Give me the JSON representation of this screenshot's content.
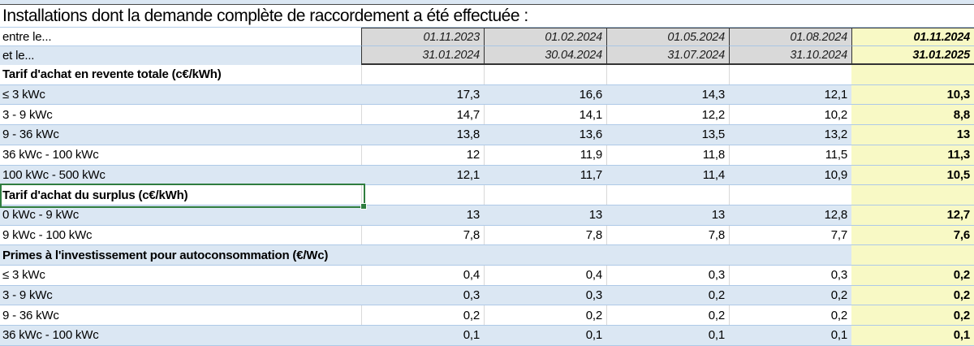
{
  "title": "Installations dont la demande complète de raccordement a été effectuée :",
  "header": {
    "between_label": "entre le...",
    "and_label": "et le...",
    "period_start_dates": [
      "01.11.2023",
      "01.02.2024",
      "01.05.2024",
      "01.08.2024",
      "01.11.2024"
    ],
    "period_end_dates": [
      "31.01.2024",
      "30.04.2024",
      "31.07.2024",
      "31.10.2024",
      "31.01.2025"
    ]
  },
  "rows": [
    {
      "type": "section",
      "label": "Tarif d'achat en revente totale (c€/kWh)"
    },
    {
      "type": "data",
      "label": "≤ 3 kWc",
      "values": [
        "17,3",
        "16,6",
        "14,3",
        "12,1",
        "10,3"
      ]
    },
    {
      "type": "data",
      "label": "3  - 9 kWc",
      "values": [
        "14,7",
        "14,1",
        "12,2",
        "10,2",
        "8,8"
      ]
    },
    {
      "type": "data",
      "label": "9 - 36 kWc",
      "values": [
        "13,8",
        "13,6",
        "13,5",
        "13,2",
        "13"
      ]
    },
    {
      "type": "data",
      "label": "36 kWc - 100 kWc",
      "values": [
        "12",
        "11,9",
        "11,8",
        "11,5",
        "11,3"
      ]
    },
    {
      "type": "data",
      "label": "100 kWc - 500 kWc",
      "values": [
        "12,1",
        "11,7",
        "11,4",
        "10,9",
        "10,5"
      ]
    },
    {
      "type": "section",
      "label": "Tarif d'achat du surplus (c€/kWh)",
      "selected": true
    },
    {
      "type": "data",
      "label": "0 kWc - 9 kWc",
      "values": [
        "13",
        "13",
        "13",
        "12,8",
        "12,7"
      ]
    },
    {
      "type": "data",
      "label": "9 kWc - 100 kWc",
      "values": [
        "7,8",
        "7,8",
        "7,8",
        "7,7",
        "7,6"
      ]
    },
    {
      "type": "section",
      "label": "Primes à l'investissement pour autoconsommation (€/Wc)"
    },
    {
      "type": "data",
      "label": "≤ 3 kWc",
      "values": [
        "0,4",
        "0,4",
        "0,3",
        "0,3",
        "0,2"
      ]
    },
    {
      "type": "data",
      "label": "3  - 9 kWc",
      "values": [
        "0,3",
        "0,3",
        "0,2",
        "0,2",
        "0,2"
      ]
    },
    {
      "type": "data",
      "label": "9 - 36 kWc",
      "values": [
        "0,2",
        "0,2",
        "0,2",
        "0,2",
        "0,2"
      ]
    },
    {
      "type": "data",
      "label": "36 kWc - 100 kWc",
      "values": [
        "0,1",
        "0,1",
        "0,1",
        "0,1",
        "0,1"
      ]
    }
  ],
  "colors": {
    "band_blue": "#dbe7f3",
    "row_line_blue": "#aec9e7",
    "highlight_yellow": "#f8f9c5",
    "header_gray": "#d9d9d9",
    "dark_border": "#333333",
    "selection_green": "#2f7d3f"
  }
}
